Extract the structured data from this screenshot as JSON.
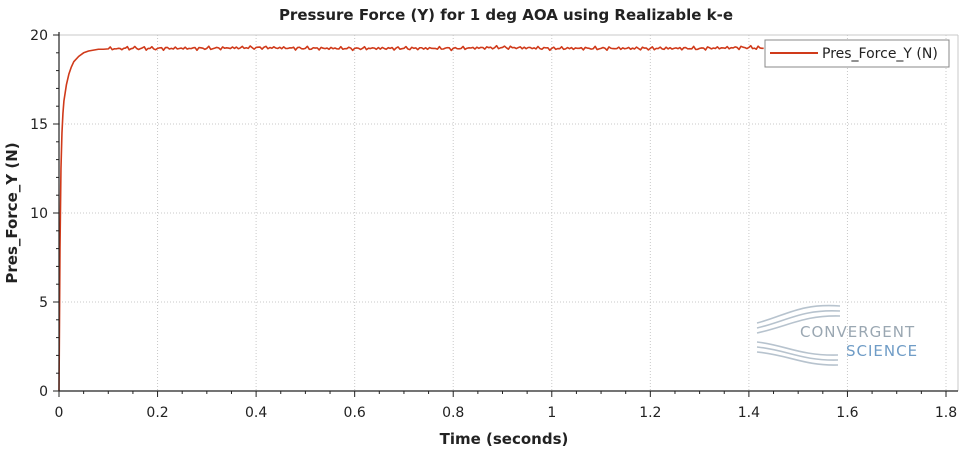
{
  "chart_data": {
    "type": "line",
    "title": "Pressure Force (Y) for 1 deg AOA using Realizable k-e",
    "xlabel": "Time (seconds)",
    "ylabel": "Pres_Force_Y (N)",
    "xlim": [
      0,
      1.8
    ],
    "ylim": [
      0,
      20
    ],
    "xticks": [
      0,
      0.2,
      0.4,
      0.6,
      0.8,
      1,
      1.2,
      1.4,
      1.6,
      1.8
    ],
    "xtick_labels": [
      "0",
      "0.2",
      "0.4",
      "0.6",
      "0.8",
      "1",
      "1.2",
      "1.4",
      "1.6",
      "1.8"
    ],
    "yticks": [
      0,
      5,
      10,
      15,
      20
    ],
    "ytick_labels": [
      "0",
      "5",
      "10",
      "15",
      "20"
    ],
    "grid": true,
    "legend_position": "top-right",
    "series": [
      {
        "name": "Pres_Force_Y (N)",
        "color": "#d03a1a",
        "x": [
          0,
          0.002,
          0.004,
          0.006,
          0.008,
          0.01,
          0.015,
          0.02,
          0.025,
          0.03,
          0.04,
          0.05,
          0.06,
          0.07,
          0.08,
          0.09,
          0.1,
          0.12,
          0.15,
          0.2,
          0.3,
          0.4,
          0.5,
          0.6,
          0.7,
          0.8,
          0.9,
          1.0,
          1.1,
          1.2,
          1.3,
          1.4,
          1.43
        ],
        "y": [
          0,
          8.0,
          12.5,
          14.5,
          15.6,
          16.3,
          17.2,
          17.8,
          18.2,
          18.5,
          18.8,
          19.0,
          19.1,
          19.15,
          19.2,
          19.2,
          19.22,
          19.25,
          19.25,
          19.25,
          19.25,
          19.3,
          19.25,
          19.25,
          19.25,
          19.25,
          19.3,
          19.25,
          19.25,
          19.25,
          19.25,
          19.3,
          19.25
        ]
      }
    ]
  },
  "logo": {
    "line1": "CONVERGENT",
    "line2": "SCIENCE"
  }
}
